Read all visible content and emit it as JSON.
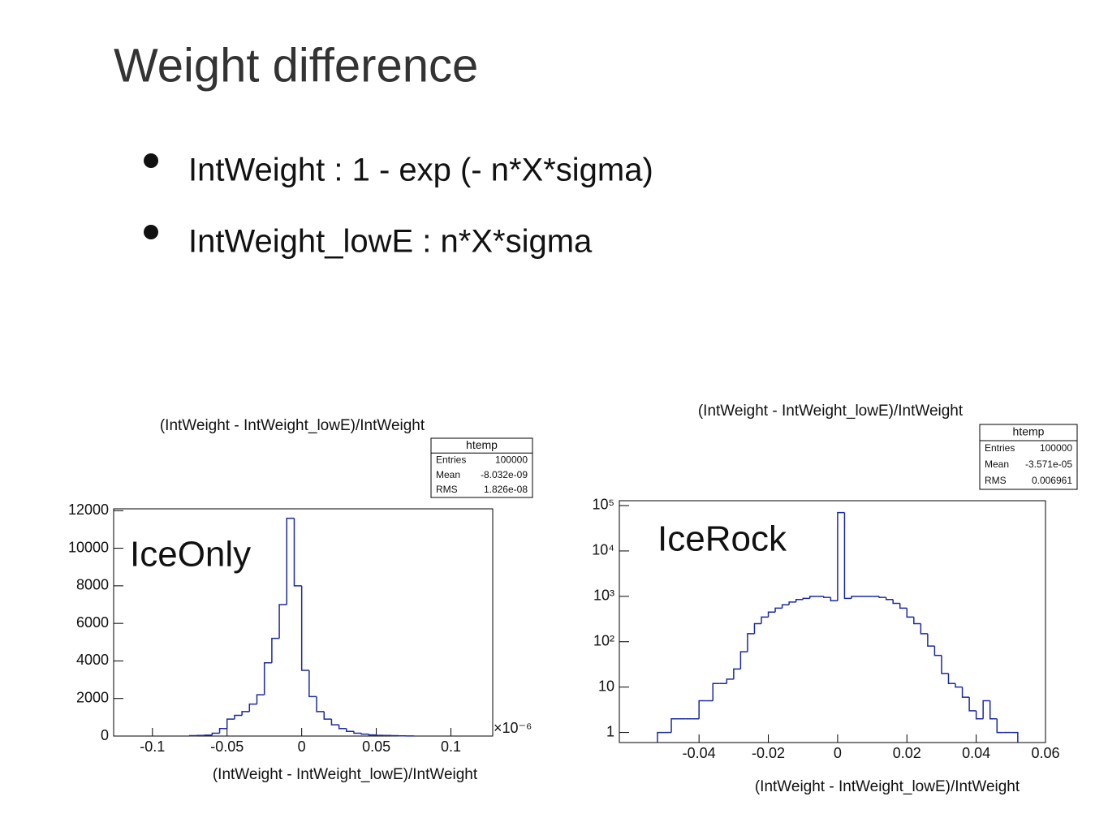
{
  "title": "Weight difference",
  "bullets": [
    "IntWeight : 1 - exp (- n*X*sigma)",
    "IntWeight_lowE : n*X*sigma"
  ],
  "chart_data": [
    {
      "type": "histogram",
      "title": "(IntWeight - IntWeight_lowE)/IntWeight",
      "x_label": "(IntWeight - IntWeight_lowE)/IntWeight",
      "annotation": "IceOnly",
      "x_multiplier": "×10⁻⁶",
      "color": "#1a2aa0",
      "stats": {
        "title": "htemp",
        "rows": [
          [
            "Entries",
            "100000"
          ],
          [
            "Mean",
            "-8.032e-09"
          ],
          [
            "RMS",
            "1.826e-08"
          ]
        ]
      },
      "bins": [
        -0.075,
        -0.07,
        -0.065,
        -0.06,
        -0.055,
        -0.05,
        -0.045,
        -0.04,
        -0.035,
        -0.03,
        -0.025,
        -0.02,
        -0.015,
        -0.01,
        -0.005,
        0,
        0.005,
        0.01,
        0.015,
        0.02,
        0.025,
        0.03,
        0.035,
        0.04,
        0.045,
        0.05,
        0.055,
        0.06,
        0.065,
        0.07,
        0.075
      ],
      "values": [
        20,
        30,
        50,
        150,
        400,
        900,
        1100,
        1300,
        1700,
        2200,
        3900,
        5200,
        7000,
        11600,
        8000,
        3500,
        2100,
        1300,
        900,
        600,
        400,
        250,
        150,
        100,
        60,
        40,
        30,
        20,
        10,
        5
      ],
      "xlim": [
        -0.126,
        0.128
      ],
      "xticks": [
        -0.1,
        -0.05,
        0,
        0.05,
        0.1
      ],
      "ylim": [
        0,
        12100
      ],
      "yticks": [
        0,
        2000,
        4000,
        6000,
        8000,
        10000,
        12000
      ],
      "ylog": false
    },
    {
      "type": "histogram",
      "title": "(IntWeight - IntWeight_lowE)/IntWeight",
      "x_label": "(IntWeight - IntWeight_lowE)/IntWeight",
      "annotation": "IceRock",
      "color": "#1a2aa0",
      "stats": {
        "title": "htemp",
        "rows": [
          [
            "Entries",
            "100000"
          ],
          [
            "Mean",
            "-3.571e-05"
          ],
          [
            "RMS",
            "0.006961"
          ]
        ]
      },
      "bins": [
        -0.052,
        -0.05,
        -0.048,
        -0.046,
        -0.044,
        -0.042,
        -0.04,
        -0.038,
        -0.036,
        -0.034,
        -0.032,
        -0.03,
        -0.028,
        -0.026,
        -0.024,
        -0.022,
        -0.02,
        -0.018,
        -0.016,
        -0.014,
        -0.012,
        -0.01,
        -0.008,
        -0.006,
        -0.004,
        -0.002,
        0,
        0.002,
        0.004,
        0.006,
        0.008,
        0.01,
        0.012,
        0.014,
        0.016,
        0.018,
        0.02,
        0.022,
        0.024,
        0.026,
        0.028,
        0.03,
        0.032,
        0.034,
        0.036,
        0.038,
        0.04,
        0.042,
        0.044,
        0.046,
        0.048,
        0.05,
        0.052
      ],
      "values": [
        1,
        1,
        2,
        2,
        2,
        2,
        5,
        5,
        12,
        12,
        15,
        25,
        60,
        150,
        250,
        350,
        450,
        550,
        650,
        750,
        850,
        900,
        1000,
        1000,
        950,
        800,
        70000,
        900,
        1000,
        1000,
        1000,
        1000,
        950,
        850,
        700,
        550,
        350,
        250,
        150,
        80,
        50,
        20,
        12,
        10,
        6,
        3,
        2,
        5,
        2,
        1,
        1,
        1
      ],
      "xlim": [
        -0.063,
        0.06
      ],
      "xticks": [
        -0.04,
        -0.02,
        0,
        0.02,
        0.04,
        0.06
      ],
      "ylim": [
        0.6,
        128000
      ],
      "yticks": [
        1,
        10,
        {
          "value": 100,
          "label": "10²"
        },
        {
          "value": 1000,
          "label": "10³"
        },
        {
          "value": 10000,
          "label": "10⁴"
        },
        {
          "value": 100000,
          "label": "10⁵"
        }
      ],
      "ylog": true
    }
  ]
}
